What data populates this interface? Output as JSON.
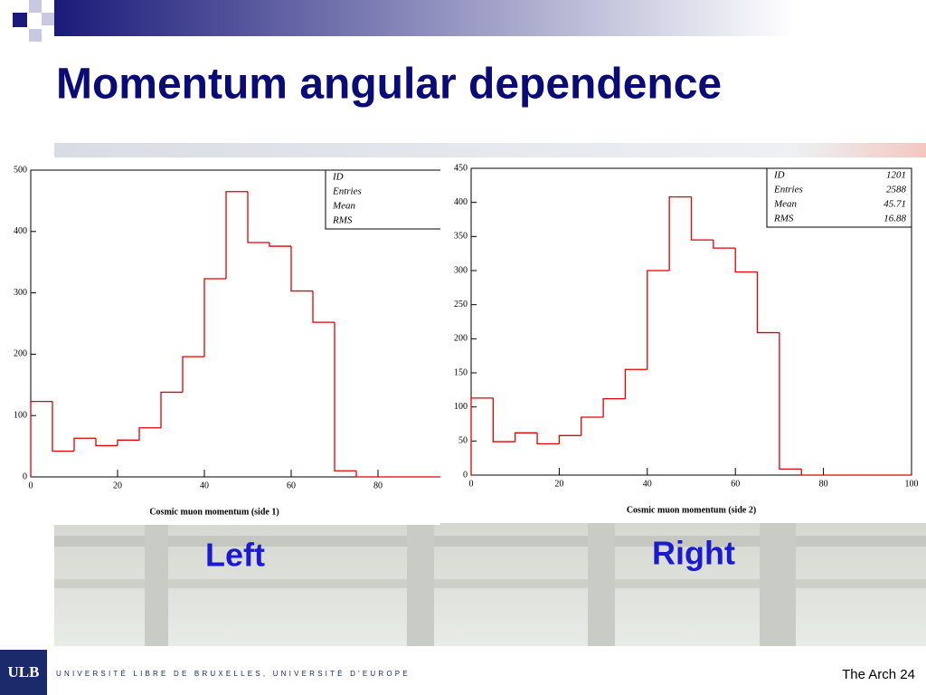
{
  "title": "Momentum angular dependence",
  "labels": [
    "Left",
    "Right"
  ],
  "footer": {
    "logo": "ULB",
    "university": "UNIVERSITÉ LIBRE DE BRUXELLES, UNIVERSITÉ D'EUROPE",
    "page": "The Arch 24"
  },
  "chart_data": [
    {
      "type": "histogram",
      "xlabel": "Cosmic muon momentum (side 1)",
      "color": "#e00000",
      "bins": [
        0,
        5,
        10,
        15,
        20,
        25,
        30,
        35,
        40,
        45,
        50,
        55,
        60,
        65,
        70,
        75,
        80,
        85,
        90,
        95,
        100
      ],
      "values": [
        123,
        42,
        63,
        51,
        60,
        80,
        138,
        196,
        323,
        465,
        382,
        376,
        303,
        252,
        10,
        0,
        0,
        0,
        0,
        0
      ],
      "xlim": [
        0,
        100
      ],
      "xticks": [
        0,
        20,
        40,
        60,
        80
      ],
      "ylim": [
        0,
        500
      ],
      "yticks": [
        0,
        100,
        200,
        300,
        400,
        500
      ],
      "stats": {
        "labels": [
          "ID",
          "Entries",
          "Mean",
          "RMS"
        ]
      }
    },
    {
      "type": "histogram",
      "xlabel": "Cosmic muon momentum (side 2)",
      "color": "#e00000",
      "bins": [
        0,
        5,
        10,
        15,
        20,
        25,
        30,
        35,
        40,
        45,
        50,
        55,
        60,
        65,
        70,
        75,
        80,
        85,
        90,
        95,
        100
      ],
      "values": [
        113,
        49,
        62,
        46,
        58,
        85,
        112,
        155,
        300,
        408,
        345,
        333,
        298,
        209,
        9,
        0,
        0,
        0,
        0,
        0
      ],
      "xlim": [
        0,
        100
      ],
      "xticks": [
        0,
        20,
        40,
        60,
        80,
        100
      ],
      "ylim": [
        0,
        450
      ],
      "yticks": [
        0,
        50,
        100,
        150,
        200,
        250,
        300,
        350,
        400,
        450
      ],
      "stats": {
        "labels": [
          "ID",
          "Entries",
          "Mean",
          "RMS"
        ],
        "values": [
          "1201",
          "2588",
          "45.71",
          "16.88"
        ]
      }
    }
  ]
}
